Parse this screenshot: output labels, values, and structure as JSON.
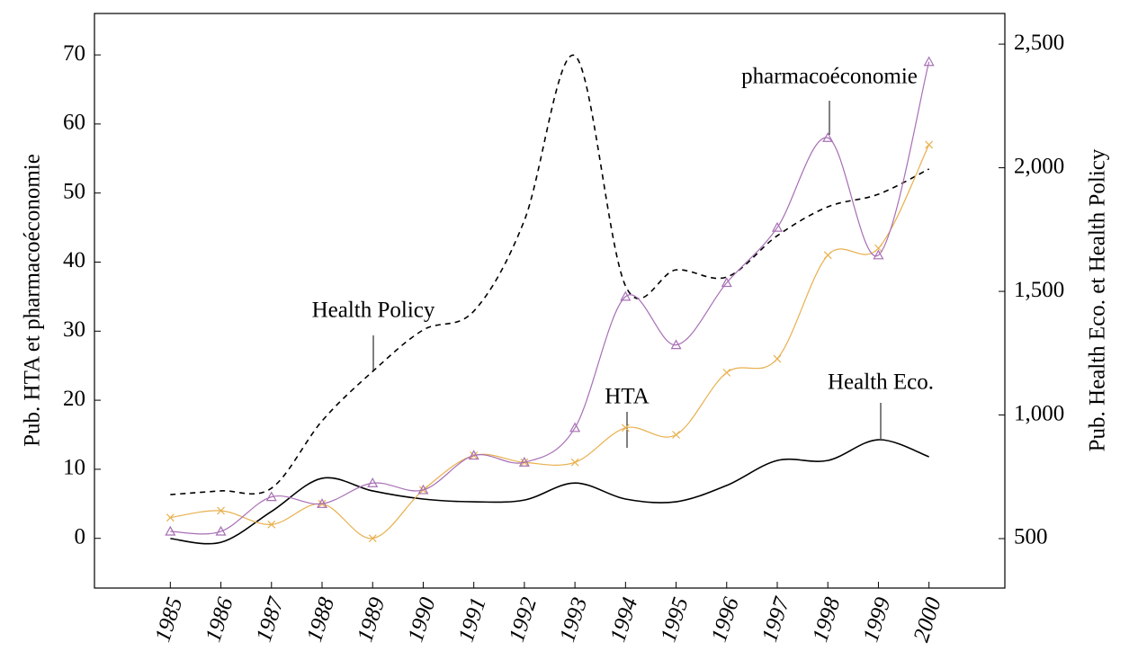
{
  "chart_data": {
    "type": "line",
    "y_label": "Pub. HTA et pharmacoéconomie",
    "y2_label": "Pub. Health Eco. et Health Policy",
    "x": [
      1985,
      1986,
      1987,
      1988,
      1989,
      1990,
      1991,
      1992,
      1993,
      1994,
      1995,
      1996,
      1997,
      1998,
      1999,
      2000
    ],
    "xlim": [
      1983.5,
      2001.5
    ],
    "xticks": [
      1985,
      1986,
      1987,
      1988,
      1989,
      1990,
      1991,
      1992,
      1993,
      1994,
      1995,
      1996,
      1997,
      1998,
      1999,
      2000
    ],
    "ylim": [
      -7.2,
      76
    ],
    "yticks": [
      0,
      10,
      20,
      30,
      40,
      50,
      60,
      70
    ],
    "y2lim": [
      300,
      2624
    ],
    "y2ticks": [
      500,
      {
        "value": 1000,
        "label": "1,000"
      },
      {
        "value": 1500,
        "label": "1,500"
      },
      {
        "value": 2000,
        "label": "2,000"
      },
      {
        "value": 2500,
        "label": "2,500"
      }
    ],
    "series": [
      {
        "name": "pharmacoéconomie",
        "color": "#a86fb5",
        "marker": "triangle",
        "values": [
          1,
          1,
          6,
          5,
          8,
          7,
          12,
          11,
          16,
          35,
          28,
          37,
          45,
          58,
          41,
          69
        ]
      },
      {
        "name": "HTA",
        "color": "#e8b04e",
        "marker": "cross",
        "values": [
          3,
          4,
          2,
          5,
          0,
          7,
          12,
          11,
          11,
          16,
          15,
          24,
          26,
          41,
          42,
          57
        ]
      },
      {
        "name": "Health Eco.",
        "color": "#000000",
        "axis": "y2",
        "values": [
          500,
          485,
          610,
          744,
          693,
          660,
          649,
          656,
          725,
          660,
          649,
          715,
          816,
          816,
          900,
          831
        ]
      },
      {
        "name": "Health Policy",
        "color": "#000000",
        "axis": "y2",
        "dash": true,
        "values": [
          678,
          693,
          704,
          976,
          1176,
          1344,
          1420,
          1787,
          2453,
          1522,
          1587,
          1558,
          1725,
          1842,
          1893,
          1995
        ]
      }
    ]
  }
}
